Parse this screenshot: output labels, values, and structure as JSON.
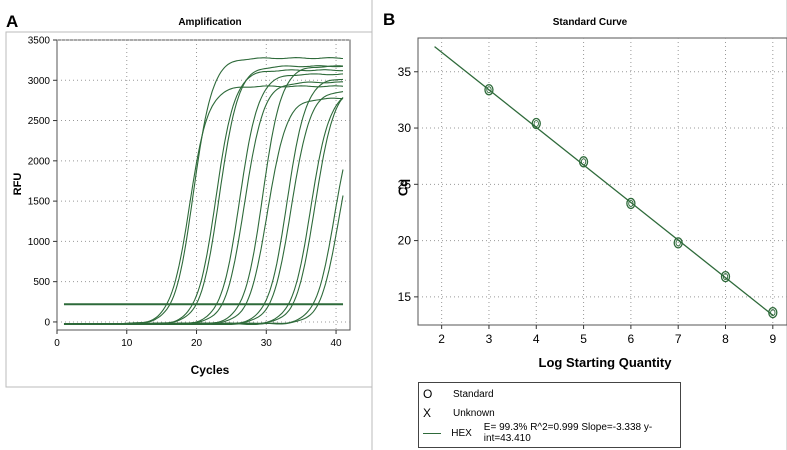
{
  "panels": {
    "a_letter": "A",
    "b_letter": "B"
  },
  "chart_data": [
    {
      "type": "line",
      "title": "Amplification",
      "xlabel": "Cycles",
      "ylabel": "RFU",
      "xlim": [
        0,
        42
      ],
      "ylim": [
        -100,
        3500
      ],
      "xticks": [
        0,
        10,
        20,
        30,
        40
      ],
      "yticks": [
        0,
        500,
        1000,
        1500,
        2000,
        2500,
        3000,
        3500
      ],
      "grid": true,
      "threshold": 220,
      "curve_color": "#2e6a3a",
      "series": [
        {
          "midpoint": 19.0,
          "plateau": 2950
        },
        {
          "midpoint": 19.6,
          "plateau": 3300
        },
        {
          "midpoint": 22.8,
          "plateau": 3150
        },
        {
          "midpoint": 23.3,
          "plateau": 3200
        },
        {
          "midpoint": 26.2,
          "plateau": 3100
        },
        {
          "midpoint": 26.9,
          "plateau": 3000
        },
        {
          "midpoint": 29.5,
          "plateau": 3200
        },
        {
          "midpoint": 30.2,
          "plateau": 2800
        },
        {
          "midpoint": 33.0,
          "plateau": 3050
        },
        {
          "midpoint": 33.6,
          "plateau": 2900
        },
        {
          "midpoint": 36.4,
          "plateau": 2900
        },
        {
          "midpoint": 37.0,
          "plateau": 2950
        },
        {
          "midpoint": 39.8,
          "plateau": 2700
        },
        {
          "midpoint": 40.5,
          "plateau": 2700
        }
      ]
    },
    {
      "type": "scatter",
      "title": "Standard Curve",
      "xlabel": "Log Starting Quantity",
      "ylabel": "Cq",
      "xlim": [
        1.5,
        9.3
      ],
      "ylim": [
        12.5,
        38
      ],
      "xticks": [
        2,
        3,
        4,
        5,
        6,
        7,
        8,
        9
      ],
      "yticks": [
        15,
        20,
        25,
        30,
        35
      ],
      "grid": true,
      "fit": {
        "slope": -3.338,
        "intercept": 43.41,
        "x_range": [
          1.85,
          9.0
        ]
      },
      "points": [
        {
          "x": 3,
          "y": 33.4
        },
        {
          "x": 4,
          "y": 30.4
        },
        {
          "x": 5,
          "y": 27.0
        },
        {
          "x": 6,
          "y": 23.3
        },
        {
          "x": 7,
          "y": 19.8
        },
        {
          "x": 8,
          "y": 16.8
        },
        {
          "x": 9,
          "y": 13.6
        }
      ],
      "legend": {
        "standard_label": "Standard",
        "unknown_label": "Unknown",
        "hex_label": "HEX",
        "fit_text": "E= 99.3% R^2=0.999 Slope=-3.338 y-int=43.410",
        "standard_symbol": "O",
        "unknown_symbol": "X"
      },
      "color": "#2e6a3a"
    }
  ]
}
